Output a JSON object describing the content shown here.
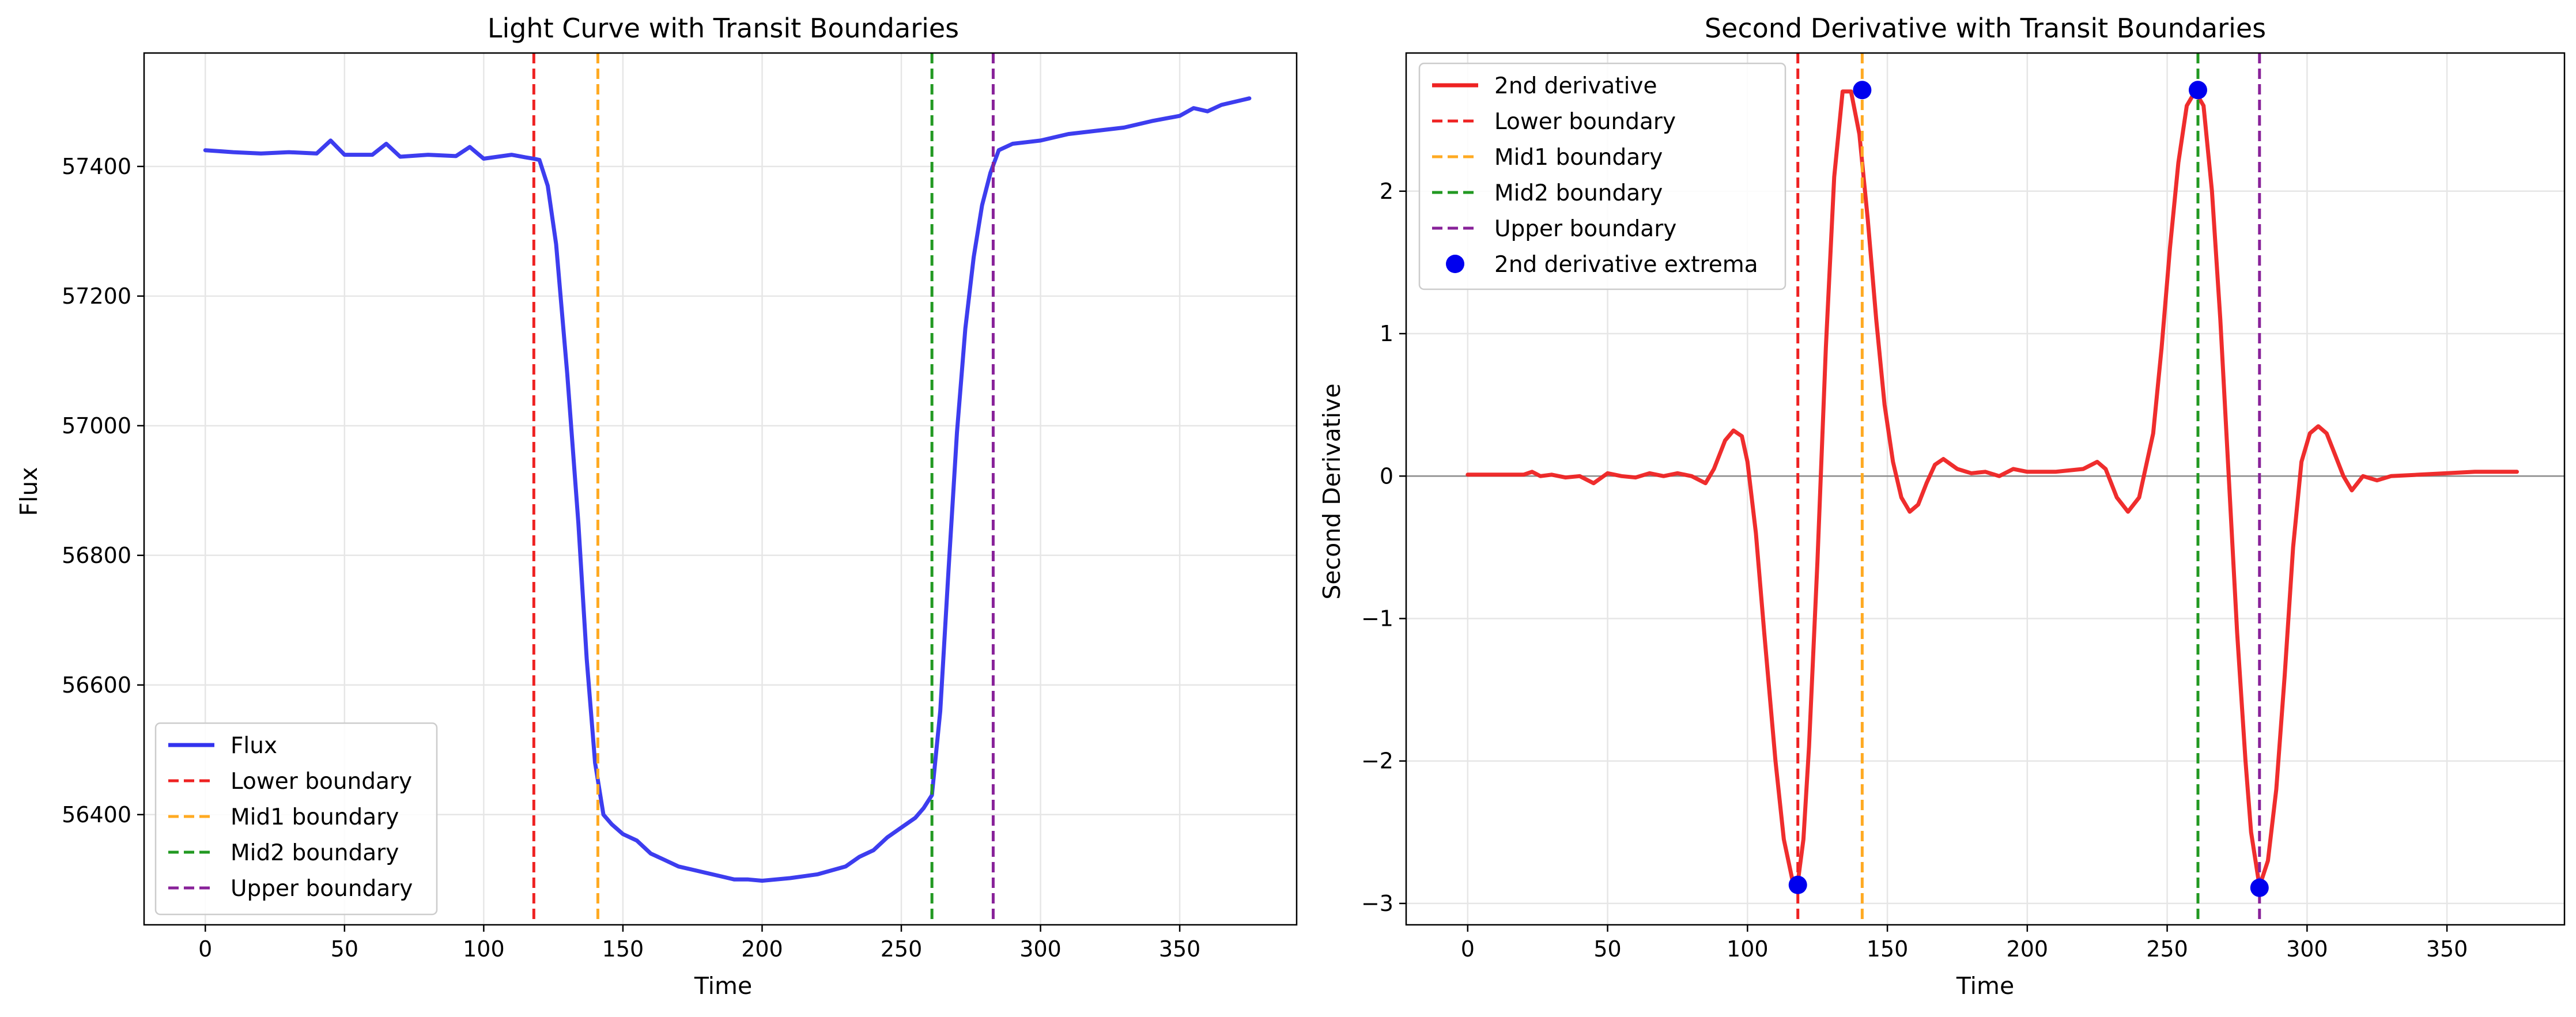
{
  "chart_data": [
    {
      "type": "line",
      "title": "Light Curve with Transit Boundaries",
      "xlabel": "Time",
      "ylabel": "Flux",
      "xlim": [
        -22,
        392
      ],
      "ylim": [
        56230,
        57575
      ],
      "x_ticks": [
        0,
        50,
        100,
        150,
        200,
        250,
        300,
        350
      ],
      "y_ticks": [
        56400,
        56600,
        56800,
        57000,
        57200,
        57400
      ],
      "grid": true,
      "legend_position": "lower-left",
      "series": [
        {
          "name": "Flux",
          "color": "#3333ee",
          "x": [
            0,
            10,
            20,
            30,
            40,
            45,
            50,
            60,
            65,
            70,
            80,
            90,
            95,
            100,
            110,
            115,
            118,
            120,
            123,
            126,
            130,
            134,
            137,
            140,
            143,
            146,
            150,
            155,
            160,
            165,
            170,
            175,
            180,
            185,
            190,
            195,
            200,
            210,
            220,
            230,
            235,
            240,
            245,
            250,
            255,
            258,
            261,
            264,
            267,
            270,
            273,
            276,
            279,
            282,
            285,
            290,
            300,
            310,
            320,
            330,
            340,
            350,
            355,
            360,
            365,
            370,
            375
          ],
          "values": [
            57425,
            57422,
            57420,
            57422,
            57420,
            57440,
            57418,
            57418,
            57435,
            57415,
            57418,
            57416,
            57430,
            57412,
            57418,
            57414,
            57412,
            57410,
            57370,
            57280,
            57080,
            56850,
            56640,
            56480,
            56400,
            56385,
            56370,
            56360,
            56340,
            56330,
            56320,
            56315,
            56310,
            56305,
            56300,
            56300,
            56298,
            56302,
            56308,
            56320,
            56335,
            56345,
            56365,
            56380,
            56395,
            56410,
            56430,
            56560,
            56780,
            56990,
            57150,
            57260,
            57340,
            57390,
            57425,
            57435,
            57440,
            57450,
            57455,
            57460,
            57470,
            57478,
            57490,
            57485,
            57495,
            57500,
            57505
          ]
        }
      ],
      "vlines": [
        {
          "name": "Lower boundary",
          "x": 118,
          "color": "#ee2222"
        },
        {
          "name": "Mid1 boundary",
          "x": 141,
          "color": "#ffaa22"
        },
        {
          "name": "Mid2 boundary",
          "x": 261,
          "color": "#229922"
        },
        {
          "name": "Upper boundary",
          "x": 283,
          "color": "#882299"
        }
      ]
    },
    {
      "type": "line",
      "title": "Second Derivative with Transit Boundaries",
      "xlabel": "Time",
      "ylabel": "Second Derivative",
      "xlim": [
        -22,
        392
      ],
      "ylim": [
        -3.15,
        2.97
      ],
      "x_ticks": [
        0,
        50,
        100,
        150,
        200,
        250,
        300,
        350
      ],
      "y_ticks": [
        -3,
        -2,
        -1,
        0,
        1,
        2
      ],
      "grid": true,
      "legend_position": "upper-left",
      "zero_line": true,
      "series": [
        {
          "name": "2nd derivative",
          "color": "#ee2222",
          "x": [
            0,
            10,
            20,
            23,
            26,
            30,
            35,
            40,
            45,
            50,
            55,
            60,
            65,
            70,
            75,
            80,
            85,
            88,
            92,
            95,
            98,
            100,
            103,
            106,
            110,
            113,
            116,
            118,
            120,
            122,
            125,
            128,
            131,
            134,
            137,
            140,
            143,
            146,
            149,
            152,
            155,
            158,
            161,
            164,
            167,
            170,
            175,
            180,
            185,
            190,
            195,
            200,
            210,
            220,
            225,
            228,
            232,
            236,
            240,
            245,
            248,
            251,
            254,
            257,
            260,
            263,
            266,
            269,
            272,
            275,
            278,
            280,
            283,
            286,
            289,
            292,
            295,
            298,
            301,
            304,
            307,
            310,
            313,
            316,
            320,
            325,
            330,
            340,
            350,
            360,
            375
          ],
          "values": [
            0.01,
            0.01,
            0.01,
            0.03,
            0.0,
            0.01,
            -0.01,
            0.0,
            -0.05,
            0.02,
            0.0,
            -0.01,
            0.02,
            0.0,
            0.02,
            0.0,
            -0.05,
            0.05,
            0.25,
            0.32,
            0.28,
            0.1,
            -0.4,
            -1.1,
            -2.0,
            -2.55,
            -2.83,
            -2.85,
            -2.55,
            -1.9,
            -0.6,
            0.9,
            2.1,
            2.7,
            2.7,
            2.4,
            1.8,
            1.1,
            0.5,
            0.1,
            -0.15,
            -0.25,
            -0.2,
            -0.05,
            0.08,
            0.12,
            0.05,
            0.02,
            0.03,
            0.0,
            0.05,
            0.03,
            0.03,
            0.05,
            0.1,
            0.05,
            -0.15,
            -0.25,
            -0.15,
            0.3,
            0.9,
            1.6,
            2.2,
            2.6,
            2.7,
            2.6,
            2.0,
            1.1,
            0.0,
            -1.1,
            -2.0,
            -2.5,
            -2.88,
            -2.7,
            -2.2,
            -1.4,
            -0.5,
            0.1,
            0.3,
            0.35,
            0.3,
            0.15,
            0.0,
            -0.1,
            0.0,
            -0.03,
            0.0,
            0.01,
            0.02,
            0.03,
            0.03
          ]
        }
      ],
      "vlines": [
        {
          "name": "Lower boundary",
          "x": 118,
          "color": "#ee2222"
        },
        {
          "name": "Mid1 boundary",
          "x": 141,
          "color": "#ffaa22"
        },
        {
          "name": "Mid2 boundary",
          "x": 261,
          "color": "#229922"
        },
        {
          "name": "Upper boundary",
          "x": 283,
          "color": "#882299"
        }
      ],
      "points": {
        "name": "2nd derivative extrema",
        "color": "#0000ee",
        "x": [
          118,
          141,
          261,
          283
        ],
        "values": [
          -2.87,
          2.71,
          2.71,
          -2.89
        ]
      }
    }
  ]
}
